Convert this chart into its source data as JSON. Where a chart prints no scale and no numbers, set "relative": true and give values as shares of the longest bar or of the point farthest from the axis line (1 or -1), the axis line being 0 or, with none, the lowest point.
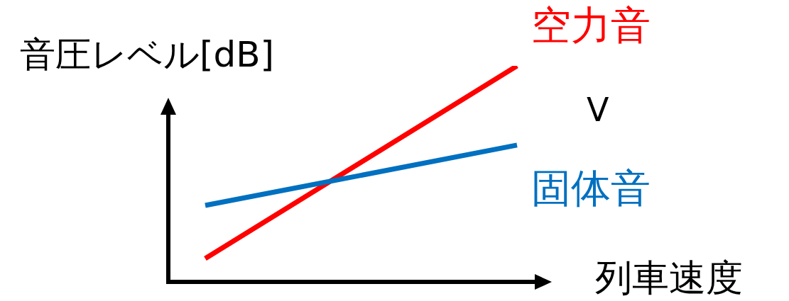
{
  "chart_data": {
    "type": "line",
    "relative": true,
    "xlabel": "列車速度",
    "ylabel": "音圧レベル[dB]",
    "categories": [
      null,
      null
    ],
    "series": [
      {
        "name": "空力音",
        "color": "#ff0000",
        "values": [
          0.108,
          1
        ]
      },
      {
        "name": "固体音",
        "color": "#0070c0",
        "values": [
          0.354,
          0.633
        ]
      }
    ],
    "annotations": [
      "V"
    ]
  }
}
